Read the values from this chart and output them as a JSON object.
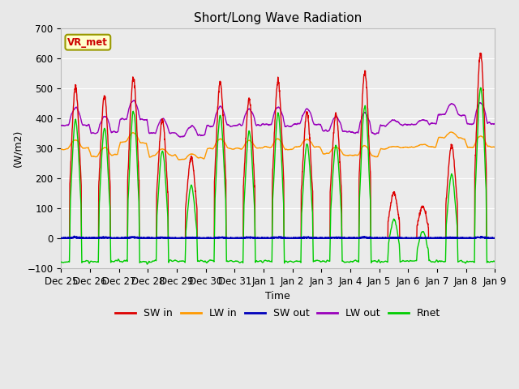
{
  "title": "Short/Long Wave Radiation",
  "xlabel": "Time",
  "ylabel": "(W/m2)",
  "ylim": [
    -100,
    700
  ],
  "yticks": [
    -100,
    0,
    100,
    200,
    300,
    400,
    500,
    600,
    700
  ],
  "bg_color": "#e8e8e8",
  "plot_bg": "#ebebeb",
  "legend_labels": [
    "SW in",
    "LW in",
    "SW out",
    "LW out",
    "Rnet"
  ],
  "legend_colors": [
    "#dd0000",
    "#ff9900",
    "#0000bb",
    "#9900bb",
    "#00cc00"
  ],
  "station_label": "VR_met",
  "station_label_color": "#cc0000",
  "station_box_facecolor": "#ffffcc",
  "station_box_edgecolor": "#999900",
  "tick_labels": [
    "Dec 25",
    "Dec 26",
    "Dec 27",
    "Dec 28",
    "Dec 29",
    "Dec 30",
    "Dec 31",
    "Jan 1",
    "Jan 2",
    "Jan 3",
    "Jan 4",
    "Jan 5",
    "Jan 6",
    "Jan 7",
    "Jan 8",
    "Jan 9"
  ],
  "num_days": 15,
  "pts_per_day": 144,
  "day_peaks_sw_in": [
    505,
    475,
    535,
    395,
    270,
    520,
    465,
    525,
    420,
    415,
    555,
    150,
    105,
    310,
    620
  ],
  "lw_in_base": [
    300,
    275,
    320,
    275,
    265,
    300,
    300,
    300,
    305,
    280,
    275,
    300,
    305,
    335,
    305
  ],
  "seed": 42
}
